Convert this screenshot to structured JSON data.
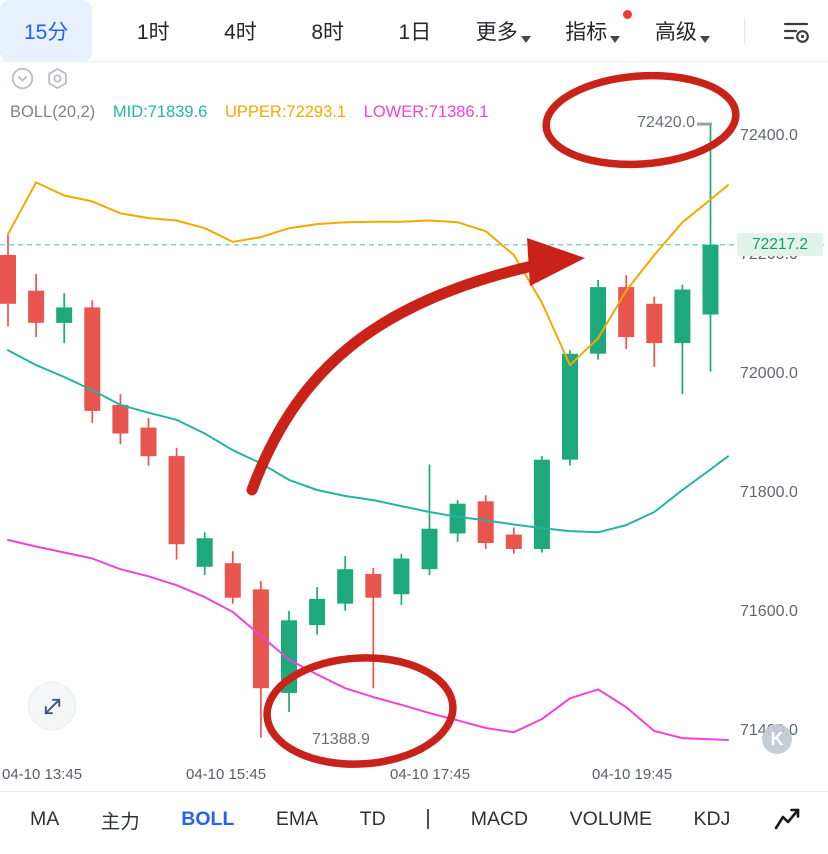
{
  "ui_colors": {
    "accent": "#2461f2",
    "accent_bg": "#e8f0fd",
    "badge_red": "#f43a3a",
    "price_green": "#0c9e67",
    "price_bg": "#e2f3ea",
    "axis_text": "#62666d"
  },
  "header": {
    "timeframes": [
      {
        "label": "15分",
        "active": true
      },
      {
        "label": "1时",
        "active": false
      },
      {
        "label": "4时",
        "active": false
      },
      {
        "label": "8时",
        "active": false
      },
      {
        "label": "1日",
        "active": false
      }
    ],
    "more_label": "更多",
    "indicators_label": "指标",
    "advanced_label": "高级"
  },
  "icons": {
    "filter": "filter-settings-icon",
    "collapse": "chevron-circle-icon",
    "hexagon": "hexagon-settings-icon",
    "expand": "expand-icon",
    "draw": "chart-draw-icon",
    "watermark": "k-watermark"
  },
  "indicator_bar": {
    "name": "BOLL(20,2)",
    "mid": "MID:71839.6",
    "upper": "UPPER:72293.1",
    "lower": "LOWER:71386.1"
  },
  "chart": {
    "high_label": "72420.0",
    "low_label": "71388.9",
    "current_price": "72217.2",
    "y_axis": [
      "72400.0",
      "72200.0",
      "72000.0",
      "71800.0",
      "71600.0",
      "71400.0"
    ],
    "x_axis": [
      "04-10 13:45",
      "04-10 15:45",
      "04-10 17:45",
      "04-10 19:45"
    ]
  },
  "chart_data": {
    "type": "candlestick",
    "timeframe": "15m",
    "indicator": "BOLL(20,2)",
    "y_range": [
      71400,
      72400
    ],
    "period_high": 72420.0,
    "period_low": 71388.9,
    "last_price": 72217.2,
    "boll_latest": {
      "mid": 71839.6,
      "upper": 72293.1,
      "lower": 71386.1
    },
    "candles_ohlc": [
      [
        72200,
        72235,
        72080,
        72118
      ],
      [
        72140,
        72168,
        72062,
        72086
      ],
      [
        72086,
        72136,
        72052,
        72112
      ],
      [
        72112,
        72124,
        71918,
        71938
      ],
      [
        71948,
        71966,
        71882,
        71900
      ],
      [
        71910,
        71926,
        71846,
        71862
      ],
      [
        71862,
        71876,
        71688,
        71714
      ],
      [
        71676,
        71734,
        71662,
        71724
      ],
      [
        71682,
        71702,
        71614,
        71624
      ],
      [
        71638,
        71652,
        71388.9,
        71472
      ],
      [
        71464,
        71602,
        71432,
        71586
      ],
      [
        71578,
        71642,
        71562,
        71622
      ],
      [
        71614,
        71694,
        71602,
        71672
      ],
      [
        71664,
        71674,
        71472,
        71624
      ],
      [
        71630,
        71698,
        71612,
        71690
      ],
      [
        71672,
        71848,
        71662,
        71740
      ],
      [
        71732,
        71788,
        71718,
        71782
      ],
      [
        71786,
        71796,
        71706,
        71716
      ],
      [
        71730,
        71742,
        71698,
        71706
      ],
      [
        71706,
        71862,
        71700,
        71856
      ],
      [
        71856,
        72040,
        71846,
        72034
      ],
      [
        72034,
        72158,
        72024,
        72146
      ],
      [
        72146,
        72166,
        72042,
        72062
      ],
      [
        72118,
        72130,
        72012,
        72052
      ],
      [
        72052,
        72150,
        71966,
        72142
      ],
      [
        72100,
        72420,
        72004,
        72217.2
      ]
    ],
    "boll_upper": [
      72235,
      72322,
      72300,
      72290,
      72270,
      72262,
      72258,
      72245,
      72222,
      72230,
      72245,
      72252,
      72255,
      72256,
      72256,
      72258,
      72255,
      72240,
      72200,
      72120,
      72015,
      72060,
      72140,
      72200,
      72255,
      72293.1
    ],
    "boll_mid": [
      72040,
      72015,
      71995,
      71973,
      71948,
      71935,
      71923,
      71900,
      71872,
      71850,
      71822,
      71805,
      71795,
      71788,
      71778,
      71768,
      71760,
      71754,
      71747,
      71741,
      71736,
      71734,
      71746,
      71768,
      71805,
      71839.6
    ],
    "boll_lower": [
      71721,
      71710,
      71700,
      71690,
      71672,
      71660,
      71645,
      71625,
      71600,
      71560,
      71520,
      71495,
      71472,
      71457,
      71444,
      71430,
      71418,
      71405,
      71398,
      71420,
      71455,
      71470,
      71440,
      71400,
      71388,
      71386.1
    ],
    "colors": {
      "up": "#1ea97c",
      "down": "#e8544e",
      "upper": "#f5a800",
      "mid": "#26b3a2",
      "lower": "#f042d8",
      "annotation": "#c92319"
    }
  },
  "footer": {
    "main_indicators": [
      "MA",
      "主力",
      "BOLL",
      "EMA",
      "TD"
    ],
    "active_indicator": "BOLL",
    "sub_indicators": [
      "MACD",
      "VOLUME",
      "KDJ"
    ]
  },
  "watermark": "K"
}
